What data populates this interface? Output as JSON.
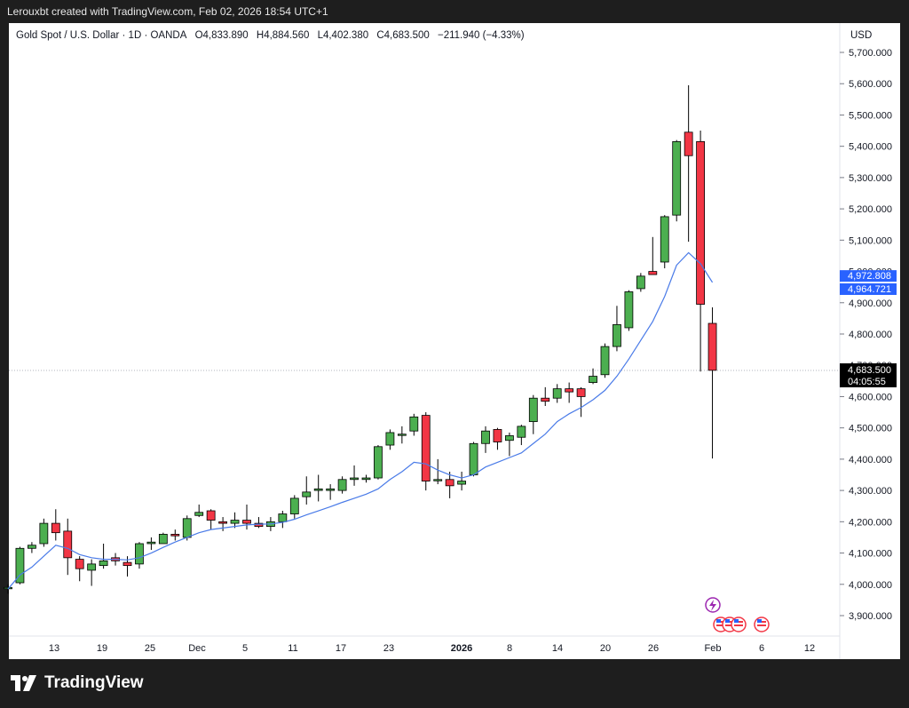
{
  "attribution": "Lerouxbt created with TradingView.com, Feb 02, 2026 18:54 UTC+1",
  "header": {
    "symbol": "Gold Spot / U.S. Dollar · 1D · OANDA",
    "open": "O4,833.890",
    "high": "H4,884.560",
    "low": "L4,402.380",
    "close": "C4,683.500",
    "change": "−211.940 (−4.33%)"
  },
  "currency": "USD",
  "brand": "TradingView",
  "colors": {
    "up": "#4caf50",
    "down": "#f23645",
    "ma": "#4a7be8",
    "ma_label": "#2962ff",
    "price_label": "#000000"
  },
  "chart_data": {
    "type": "candlestick",
    "title": "Gold Spot / U.S. Dollar · 1D · OANDA",
    "ylim": [
      3850,
      5750
    ],
    "y_ticks": [
      "3,900.000",
      "4,000.000",
      "4,100.000",
      "4,200.000",
      "4,300.000",
      "4,400.000",
      "4,500.000",
      "4,600.000",
      "4,700.000",
      "4,800.000",
      "4,900.000",
      "5,000.000",
      "5,100.000",
      "5,200.000",
      "5,300.000",
      "5,400.000",
      "5,500.000",
      "5,600.000",
      "5,700.000"
    ],
    "x_ticks": [
      "13",
      "19",
      "25",
      "Dec",
      "5",
      "11",
      "17",
      "23",
      "2026",
      "8",
      "14",
      "20",
      "26",
      "Feb",
      "6",
      "12"
    ],
    "candles": [
      {
        "o": 3990,
        "h": 4000,
        "l": 3970,
        "c": 3990
      },
      {
        "o": 4005,
        "h": 4120,
        "l": 4000,
        "c": 4115
      },
      {
        "o": 4115,
        "h": 4135,
        "l": 4100,
        "c": 4125
      },
      {
        "o": 4130,
        "h": 4210,
        "l": 4120,
        "c": 4195
      },
      {
        "o": 4195,
        "h": 4240,
        "l": 4140,
        "c": 4165
      },
      {
        "o": 4170,
        "h": 4210,
        "l": 4030,
        "c": 4085
      },
      {
        "o": 4080,
        "h": 4090,
        "l": 4010,
        "c": 4050
      },
      {
        "o": 4045,
        "h": 4080,
        "l": 3995,
        "c": 4065
      },
      {
        "o": 4060,
        "h": 4130,
        "l": 4050,
        "c": 4075
      },
      {
        "o": 4085,
        "h": 4100,
        "l": 4060,
        "c": 4075
      },
      {
        "o": 4070,
        "h": 4090,
        "l": 4025,
        "c": 4060
      },
      {
        "o": 4065,
        "h": 4135,
        "l": 4050,
        "c": 4130
      },
      {
        "o": 4130,
        "h": 4150,
        "l": 4110,
        "c": 4135
      },
      {
        "o": 4130,
        "h": 4165,
        "l": 4130,
        "c": 4160
      },
      {
        "o": 4160,
        "h": 4175,
        "l": 4140,
        "c": 4155
      },
      {
        "o": 4150,
        "h": 4220,
        "l": 4140,
        "c": 4210
      },
      {
        "o": 4220,
        "h": 4255,
        "l": 4215,
        "c": 4230
      },
      {
        "o": 4235,
        "h": 4240,
        "l": 4175,
        "c": 4205
      },
      {
        "o": 4200,
        "h": 4215,
        "l": 4170,
        "c": 4195
      },
      {
        "o": 4195,
        "h": 4230,
        "l": 4180,
        "c": 4205
      },
      {
        "o": 4205,
        "h": 4255,
        "l": 4175,
        "c": 4195
      },
      {
        "o": 4195,
        "h": 4215,
        "l": 4180,
        "c": 4185
      },
      {
        "o": 4185,
        "h": 4215,
        "l": 4170,
        "c": 4200
      },
      {
        "o": 4200,
        "h": 4235,
        "l": 4180,
        "c": 4225
      },
      {
        "o": 4225,
        "h": 4285,
        "l": 4210,
        "c": 4275
      },
      {
        "o": 4280,
        "h": 4345,
        "l": 4255,
        "c": 4295
      },
      {
        "o": 4300,
        "h": 4350,
        "l": 4265,
        "c": 4305
      },
      {
        "o": 4300,
        "h": 4320,
        "l": 4270,
        "c": 4305
      },
      {
        "o": 4300,
        "h": 4345,
        "l": 4290,
        "c": 4335
      },
      {
        "o": 4335,
        "h": 4380,
        "l": 4315,
        "c": 4340
      },
      {
        "o": 4335,
        "h": 4350,
        "l": 4325,
        "c": 4340
      },
      {
        "o": 4340,
        "h": 4445,
        "l": 4335,
        "c": 4440
      },
      {
        "o": 4445,
        "h": 4495,
        "l": 4430,
        "c": 4485
      },
      {
        "o": 4480,
        "h": 4505,
        "l": 4450,
        "c": 4480
      },
      {
        "o": 4490,
        "h": 4545,
        "l": 4475,
        "c": 4535
      },
      {
        "o": 4540,
        "h": 4550,
        "l": 4300,
        "c": 4330
      },
      {
        "o": 4335,
        "h": 4400,
        "l": 4320,
        "c": 4335
      },
      {
        "o": 4335,
        "h": 4360,
        "l": 4275,
        "c": 4315
      },
      {
        "o": 4320,
        "h": 4360,
        "l": 4300,
        "c": 4330
      },
      {
        "o": 4350,
        "h": 4455,
        "l": 4345,
        "c": 4450
      },
      {
        "o": 4450,
        "h": 4505,
        "l": 4420,
        "c": 4490
      },
      {
        "o": 4495,
        "h": 4500,
        "l": 4430,
        "c": 4455
      },
      {
        "o": 4460,
        "h": 4485,
        "l": 4410,
        "c": 4475
      },
      {
        "o": 4470,
        "h": 4510,
        "l": 4445,
        "c": 4505
      },
      {
        "o": 4520,
        "h": 4605,
        "l": 4480,
        "c": 4595
      },
      {
        "o": 4595,
        "h": 4630,
        "l": 4570,
        "c": 4585
      },
      {
        "o": 4595,
        "h": 4640,
        "l": 4580,
        "c": 4625
      },
      {
        "o": 4625,
        "h": 4645,
        "l": 4580,
        "c": 4615
      },
      {
        "o": 4625,
        "h": 4630,
        "l": 4535,
        "c": 4600
      },
      {
        "o": 4645,
        "h": 4690,
        "l": 4640,
        "c": 4665
      },
      {
        "o": 4670,
        "h": 4770,
        "l": 4660,
        "c": 4760
      },
      {
        "o": 4760,
        "h": 4890,
        "l": 4745,
        "c": 4830
      },
      {
        "o": 4820,
        "h": 4940,
        "l": 4810,
        "c": 4935
      },
      {
        "o": 4945,
        "h": 4995,
        "l": 4935,
        "c": 4985
      },
      {
        "o": 5000,
        "h": 5110,
        "l": 4995,
        "c": 4990
      },
      {
        "o": 5030,
        "h": 5180,
        "l": 5010,
        "c": 5175
      },
      {
        "o": 5180,
        "h": 5420,
        "l": 5160,
        "c": 5415
      },
      {
        "o": 5445,
        "h": 5595,
        "l": 5095,
        "c": 5370
      },
      {
        "o": 5415,
        "h": 5450,
        "l": 4680,
        "c": 4895
      },
      {
        "o": 4834,
        "h": 4885,
        "l": 4402,
        "c": 4684
      }
    ],
    "moving_average": [
      3985,
      4030,
      4055,
      4090,
      4125,
      4115,
      4095,
      4085,
      4080,
      4080,
      4078,
      4085,
      4100,
      4118,
      4135,
      4150,
      4165,
      4175,
      4180,
      4185,
      4190,
      4192,
      4193,
      4198,
      4208,
      4222,
      4235,
      4248,
      4262,
      4275,
      4288,
      4305,
      4335,
      4360,
      4390,
      4385,
      4365,
      4350,
      4340,
      4350,
      4375,
      4390,
      4405,
      4420,
      4450,
      4480,
      4520,
      4545,
      4565,
      4590,
      4620,
      4665,
      4720,
      4780,
      4840,
      4920,
      5020,
      5060,
      5025,
      4965
    ],
    "ma_labels": [
      "4,972.808",
      "4,964.721"
    ],
    "price_label": "4,683.500",
    "countdown": "04:05:55",
    "last_price": 4683.5
  }
}
